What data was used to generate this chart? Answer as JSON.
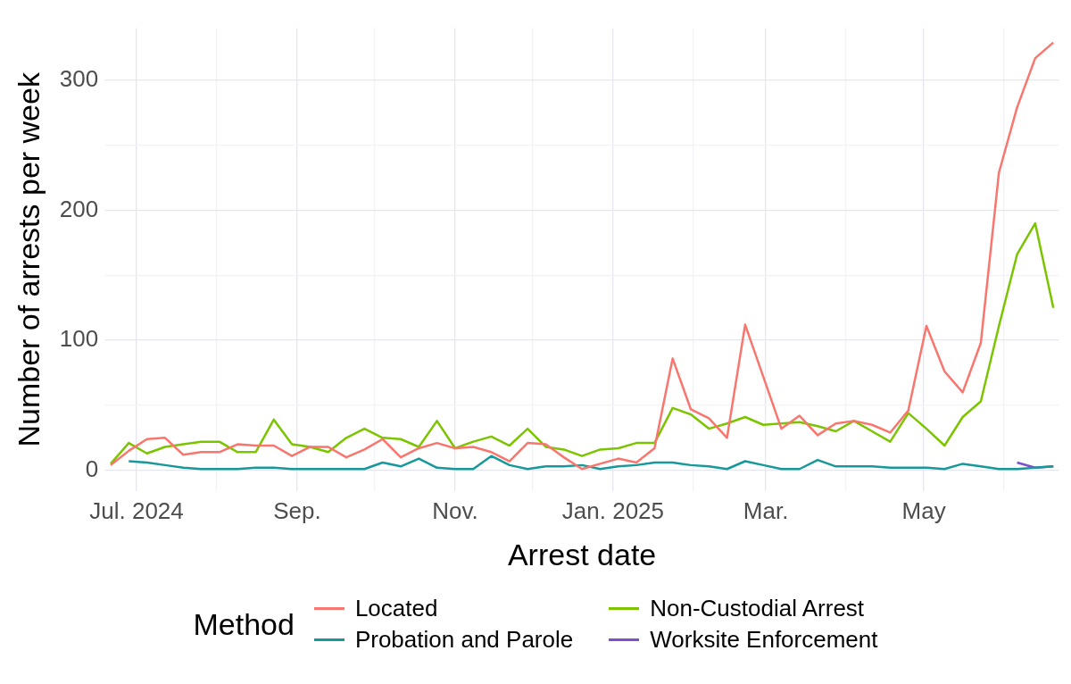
{
  "chart_data": {
    "type": "line",
    "xlabel": "Arrest date",
    "ylabel": "Number of arrests per week",
    "legend_title": "Method",
    "legend": "bottom",
    "grid": true,
    "marker": "none",
    "line_style": "solid",
    "x": [
      "2024-06-21",
      "2024-06-28",
      "2024-07-05",
      "2024-07-12",
      "2024-07-19",
      "2024-07-26",
      "2024-08-02",
      "2024-08-09",
      "2024-08-16",
      "2024-08-23",
      "2024-08-30",
      "2024-09-06",
      "2024-09-13",
      "2024-09-20",
      "2024-09-27",
      "2024-10-04",
      "2024-10-11",
      "2024-10-18",
      "2024-10-25",
      "2024-11-01",
      "2024-11-08",
      "2024-11-15",
      "2024-11-22",
      "2024-11-29",
      "2024-12-06",
      "2024-12-13",
      "2024-12-20",
      "2024-12-27",
      "2025-01-03",
      "2025-01-10",
      "2025-01-17",
      "2025-01-24",
      "2025-01-31",
      "2025-02-07",
      "2025-02-14",
      "2025-02-21",
      "2025-02-28",
      "2025-03-07",
      "2025-03-14",
      "2025-03-21",
      "2025-03-28",
      "2025-04-04",
      "2025-04-11",
      "2025-04-18",
      "2025-04-25",
      "2025-05-02",
      "2025-05-09",
      "2025-05-16",
      "2025-05-23",
      "2025-05-30",
      "2025-06-06",
      "2025-06-13",
      "2025-06-20"
    ],
    "xlim": [
      "2024-06-19",
      "2025-06-22"
    ],
    "xticks": [
      {
        "value": "2024-07-01",
        "label": "Jul. 2024"
      },
      {
        "value": "2024-08-01",
        "label": null
      },
      {
        "value": "2024-09-01",
        "label": "Sep."
      },
      {
        "value": "2024-10-01",
        "label": null
      },
      {
        "value": "2024-11-01",
        "label": "Nov."
      },
      {
        "value": "2024-12-01",
        "label": null
      },
      {
        "value": "2025-01-01",
        "label": "Jan. 2025"
      },
      {
        "value": "2025-02-01",
        "label": null
      },
      {
        "value": "2025-03-01",
        "label": "Mar."
      },
      {
        "value": "2025-04-01",
        "label": null
      },
      {
        "value": "2025-05-01",
        "label": "May"
      },
      {
        "value": "2025-06-01",
        "label": null
      }
    ],
    "ylim": [
      -16,
      340
    ],
    "yticks": [
      0,
      {
        "value": 50,
        "label": null
      },
      100,
      {
        "value": 150,
        "label": null
      },
      200,
      {
        "value": 250,
        "label": null
      },
      300
    ],
    "series": [
      {
        "name": "Located",
        "color": "#f8766d",
        "values": [
          4,
          15,
          24,
          25,
          12,
          14,
          14,
          20,
          19,
          19,
          11,
          18,
          18,
          10,
          16,
          24,
          10,
          17,
          21,
          17,
          18,
          14,
          7,
          21,
          20,
          10,
          1,
          5,
          9,
          6,
          17,
          86,
          47,
          40,
          25,
          112,
          72,
          32,
          42,
          27,
          36,
          38,
          35,
          29,
          46,
          111,
          76,
          60,
          98,
          229,
          279,
          317,
          329
        ]
      },
      {
        "name": "Non-Custodial Arrest",
        "color": "#7cc400",
        "values": [
          5,
          21,
          13,
          18,
          20,
          22,
          22,
          14,
          14,
          39,
          20,
          18,
          14,
          25,
          32,
          25,
          24,
          18,
          38,
          17,
          22,
          26,
          19,
          32,
          18,
          16,
          11,
          16,
          17,
          21,
          21,
          48,
          43,
          32,
          36,
          41,
          35,
          36,
          37,
          34,
          30,
          38,
          30,
          22,
          44,
          32,
          19,
          41,
          53,
          111,
          166,
          190,
          125
        ]
      },
      {
        "name": "Probation and Parole",
        "color": "#17999b",
        "values": [
          null,
          7,
          6,
          4,
          2,
          1,
          1,
          1,
          2,
          2,
          1,
          1,
          1,
          1,
          1,
          6,
          3,
          9,
          2,
          1,
          1,
          11,
          4,
          1,
          3,
          3,
          4,
          1,
          3,
          4,
          6,
          6,
          4,
          3,
          1,
          7,
          4,
          1,
          1,
          8,
          3,
          3,
          3,
          2,
          2,
          2,
          1,
          5,
          3,
          1,
          1,
          2,
          3
        ]
      },
      {
        "name": "Worksite Enforcement",
        "color": "#7b4fd0",
        "values": [
          null,
          null,
          null,
          null,
          null,
          null,
          null,
          null,
          null,
          null,
          null,
          null,
          null,
          null,
          null,
          null,
          null,
          null,
          null,
          null,
          null,
          null,
          null,
          null,
          null,
          null,
          null,
          null,
          null,
          null,
          null,
          null,
          null,
          null,
          null,
          null,
          null,
          null,
          null,
          null,
          null,
          null,
          null,
          null,
          null,
          null,
          null,
          null,
          null,
          null,
          6,
          2,
          3
        ]
      }
    ]
  }
}
